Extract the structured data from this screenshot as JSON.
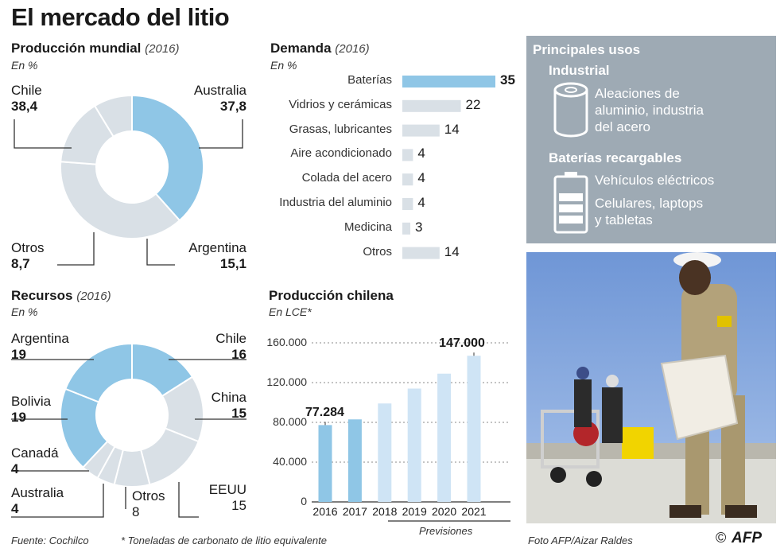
{
  "title": "El mercado del litio",
  "produccion": {
    "heading": "Producción mundial",
    "year": "(2016)",
    "unit": "En %",
    "slices": [
      {
        "name": "Chile",
        "value": 38.4,
        "label": "38,4"
      },
      {
        "name": "Australia",
        "value": 37.8,
        "label": "37,8"
      },
      {
        "name": "Argentina",
        "value": 15.1,
        "label": "15,1"
      },
      {
        "name": "Otros",
        "value": 8.7,
        "label": "8,7"
      }
    ]
  },
  "demanda": {
    "heading": "Demanda",
    "year": "(2016)",
    "unit": "En %",
    "items": [
      {
        "name": "Baterías",
        "value": 35
      },
      {
        "name": "Vidrios y cerámicas",
        "value": 22
      },
      {
        "name": "Grasas, lubricantes",
        "value": 14
      },
      {
        "name": "Aire acondicionado",
        "value": 4
      },
      {
        "name": "Colada del acero",
        "value": 4
      },
      {
        "name": "Industria del aluminio",
        "value": 4
      },
      {
        "name": "Medicina",
        "value": 3
      },
      {
        "name": "Otros",
        "value": 14
      }
    ]
  },
  "usos": {
    "heading": "Principales usos",
    "industrial_title": "Industrial",
    "industrial_text": [
      "Aleaciones de",
      "aluminio, industria",
      "del acero"
    ],
    "baterias_title": "Baterías recargables",
    "baterias_text1": "Vehículos eléctricos",
    "baterias_text2": [
      "Celulares, laptops",
      "y tabletas"
    ]
  },
  "recursos": {
    "heading": "Recursos",
    "year": "(2016)",
    "unit": "En %",
    "slices": [
      {
        "name": "Chile",
        "value": 16,
        "label": "16"
      },
      {
        "name": "China",
        "value": 15,
        "label": "15"
      },
      {
        "name": "EEUU",
        "value": 15,
        "label": "15"
      },
      {
        "name": "Otros",
        "value": 8,
        "label": "8"
      },
      {
        "name": "Australia",
        "value": 4,
        "label": "4"
      },
      {
        "name": "Canadá",
        "value": 4,
        "label": "4"
      },
      {
        "name": "Bolivia",
        "value": 19,
        "label": "19"
      },
      {
        "name": "Argentina",
        "value": 19,
        "label": "19"
      }
    ]
  },
  "chile": {
    "heading": "Producción chilena",
    "unit": "En LCE*",
    "previsiones": "Previsiones"
  },
  "chart_data": [
    {
      "type": "pie",
      "title": "Producción mundial (2016)",
      "unit": "En %",
      "categories": [
        "Chile",
        "Australia",
        "Argentina",
        "Otros"
      ],
      "values": [
        38.4,
        37.8,
        15.1,
        8.7
      ]
    },
    {
      "type": "bar",
      "title": "Demanda (2016)",
      "unit": "En %",
      "categories": [
        "Baterías",
        "Vidrios y cerámicas",
        "Grasas, lubricantes",
        "Aire acondicionado",
        "Colada del acero",
        "Industria del aluminio",
        "Medicina",
        "Otros"
      ],
      "values": [
        35,
        22,
        14,
        4,
        4,
        4,
        3,
        14
      ]
    },
    {
      "type": "pie",
      "title": "Recursos (2016)",
      "unit": "En %",
      "categories": [
        "Chile",
        "China",
        "EEUU",
        "Otros",
        "Australia",
        "Canadá",
        "Bolivia",
        "Argentina"
      ],
      "values": [
        16,
        15,
        15,
        8,
        4,
        4,
        19,
        19
      ]
    },
    {
      "type": "bar",
      "title": "Producción chilena",
      "ylabel": "En LCE*",
      "categories": [
        "2016",
        "2017",
        "2018",
        "2019",
        "2020",
        "2021"
      ],
      "values": [
        77284,
        83000,
        99000,
        114000,
        129000,
        147000
      ],
      "data_labels": [
        "77.284",
        "",
        "",
        "",
        "",
        "147.000"
      ],
      "yticks": [
        "0",
        "40.000",
        "80.000",
        "120.000",
        "160.000"
      ],
      "ylim": [
        0,
        160000
      ],
      "forecast_from": "2018"
    }
  ],
  "footer": {
    "fuente": "Fuente: Cochilco",
    "nota": "* Toneladas de carbonato de litio equivalente",
    "foto": "Foto AFP/Aizar Raldes",
    "copyright": "©",
    "afp": "AFP"
  },
  "colors": {
    "highlight": "#8fc6e6",
    "grey": "#d9e0e6",
    "forecast": "#cfe4f5",
    "panel": "#9eaab4"
  }
}
